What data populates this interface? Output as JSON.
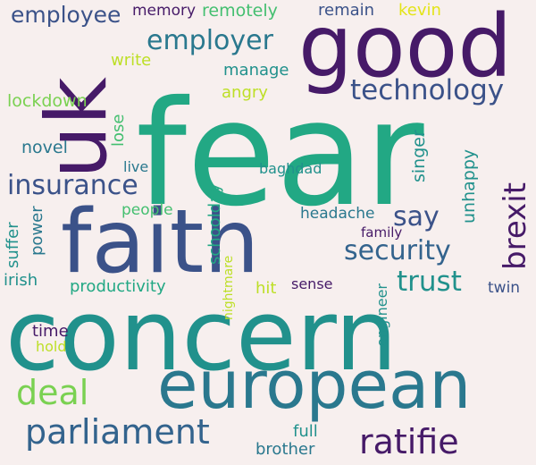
{
  "palette": {
    "background": "#f7efee",
    "dark_purple": "#461a68",
    "indigo": "#3b5289",
    "steel_blue": "#33638d",
    "teal_blue": "#2a788e",
    "teal": "#21918c",
    "sea_green": "#22a884",
    "green": "#44bf70",
    "light_green": "#7ad151",
    "lime": "#bddf26",
    "yellow": "#e3e418"
  },
  "words": {
    "fear": "fear",
    "concern": "concern",
    "good": "good",
    "uk": "uk",
    "faith": "faith",
    "european": "european",
    "technology": "technology",
    "employer": "employer",
    "employee": "employee",
    "insurance": "insurance",
    "brexit": "brexit",
    "security": "security",
    "trust": "trust",
    "say": "say",
    "deal": "deal",
    "parliament": "parliament",
    "ratifie": "ratifie",
    "memory": "memory",
    "remotely": "remotely",
    "remain": "remain",
    "kevin": "kevin",
    "write": "write",
    "manage": "manage",
    "angry": "angry",
    "lockdown": "lockdown",
    "lose": "lose",
    "novel": "novel",
    "live": "live",
    "baghdad": "baghdad",
    "singer": "singer",
    "unhappy": "unhappy",
    "schoolday": "schoolday",
    "people": "people",
    "headache": "headache",
    "family": "family",
    "suffer": "suffer",
    "power": "power",
    "nightmare": "nightmare",
    "irish": "irish",
    "productivity": "productivity",
    "hit": "hit",
    "sense": "sense",
    "twin": "twin",
    "engineer": "engineer",
    "time": "time",
    "hold": "hold",
    "full": "full",
    "brother": "brother"
  }
}
